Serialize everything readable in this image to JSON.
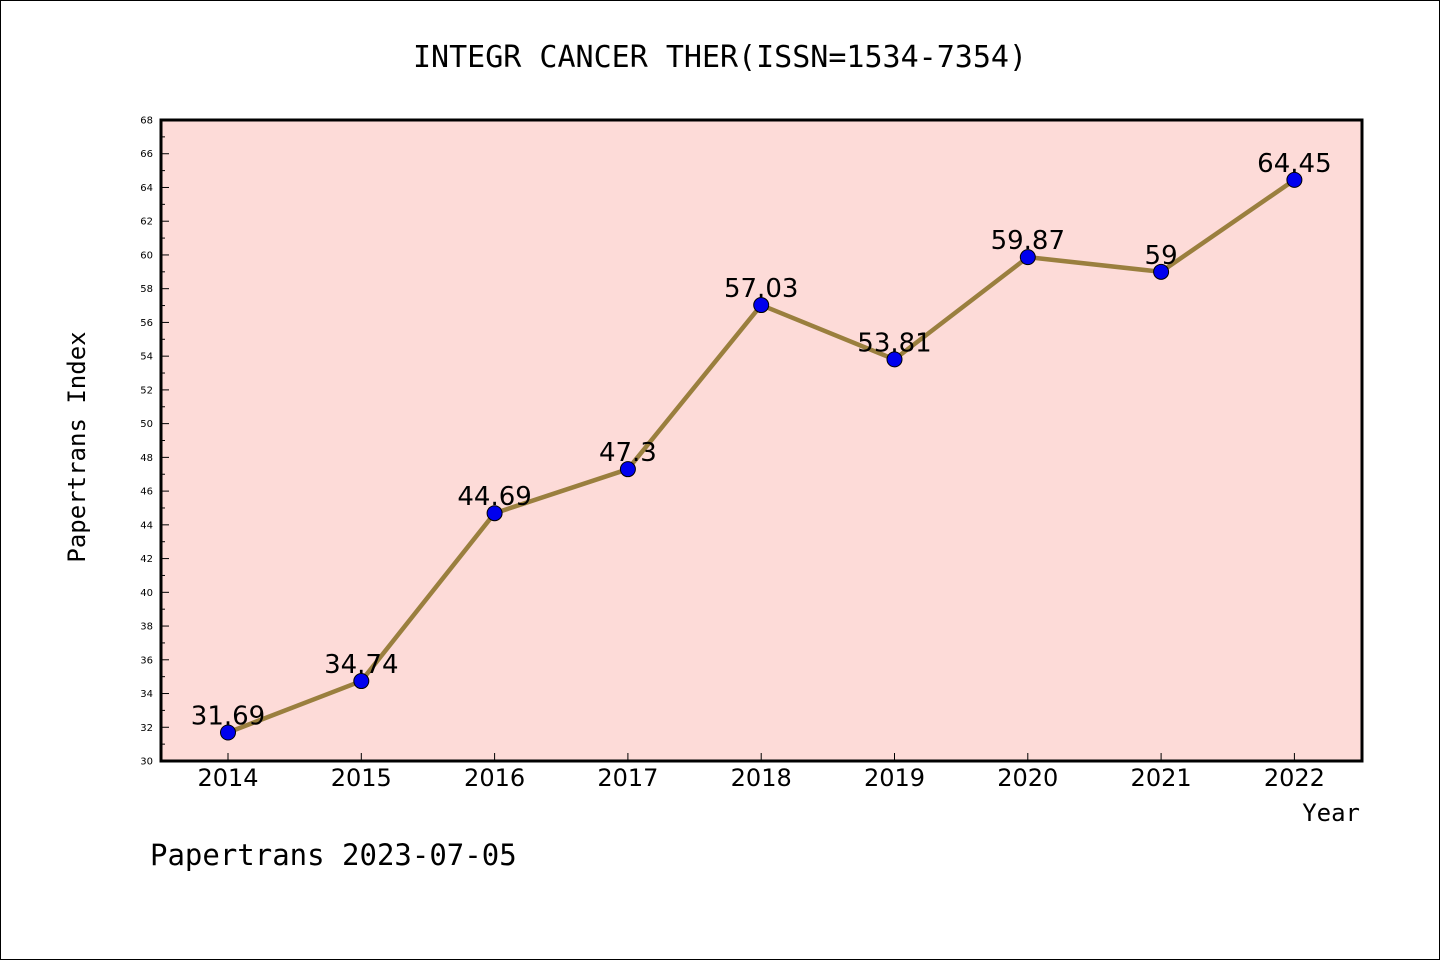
{
  "colors": {
    "plot_background": "#fddbd8",
    "line": "#9a7f3e",
    "marker": "#0000ee",
    "axis": "#000000"
  },
  "footer": "Papertrans 2023-07-05",
  "chart_data": {
    "type": "line",
    "title": "INTEGR CANCER THER(ISSN=1534-7354)",
    "xlabel": "Year",
    "ylabel": "Papertrans Index",
    "categories": [
      "2014",
      "2015",
      "2016",
      "2017",
      "2018",
      "2019",
      "2020",
      "2021",
      "2022"
    ],
    "series": [
      {
        "values": [
          31.69,
          34.74,
          44.69,
          47.3,
          57.03,
          53.81,
          59.87,
          59,
          64.45
        ],
        "labels": [
          "31.69",
          "34.74",
          "44.69",
          "47.3",
          "57.03",
          "53.81",
          "59.87",
          "59",
          "64.45"
        ]
      }
    ],
    "ylim": [
      30,
      68
    ],
    "yticks": [
      "30",
      "32",
      "34",
      "36",
      "38",
      "40",
      "42",
      "44",
      "46",
      "48",
      "50",
      "52",
      "54",
      "56",
      "58",
      "60",
      "62",
      "64",
      "66",
      "68"
    ],
    "grid": false,
    "legend": "none",
    "markers": "filled circles"
  }
}
